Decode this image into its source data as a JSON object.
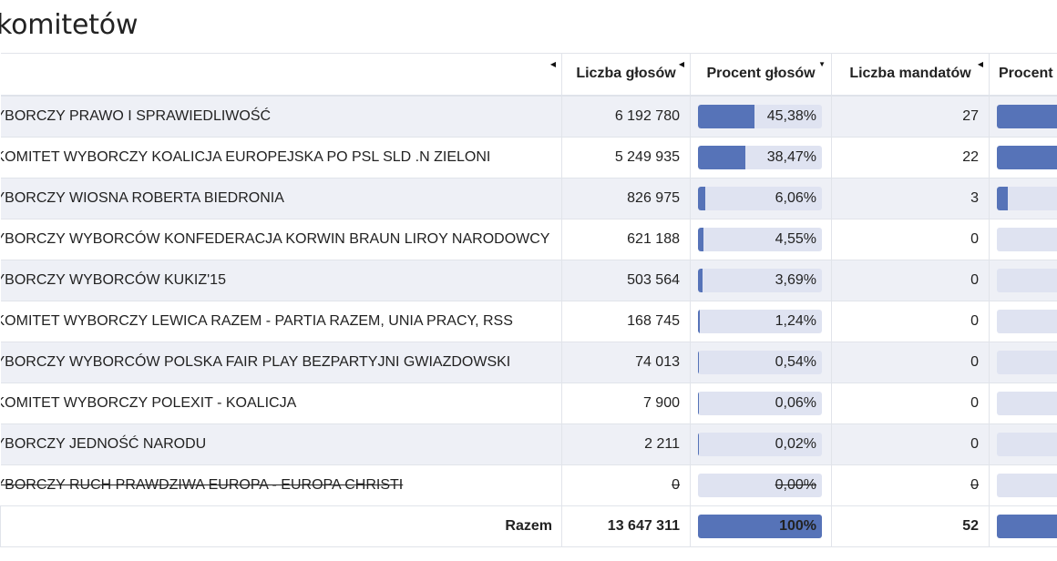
{
  "page": {
    "title": "komitetów"
  },
  "table": {
    "headers": {
      "name": "",
      "votes": "Liczba głosów",
      "votes_pct": "Procent głosów",
      "seats": "Liczba mandatów",
      "seats_pct": "Procent"
    },
    "sort_arrows": {
      "name": "◀",
      "votes": "◀",
      "votes_pct": "▼",
      "seats": "◀"
    },
    "rows": [
      {
        "name": "YBORCZY PRAWO I SPRAWIEDLIWOŚĆ",
        "votes": "6 192 780",
        "pct": "45,38%",
        "pct_value": 45.38,
        "seats": "27",
        "seats_pct_value": 52,
        "struck": false
      },
      {
        "name": "KOMITET WYBORCZY KOALICJA EUROPEJSKA PO PSL SLD .N ZIELONI",
        "votes": "5 249 935",
        "pct": "38,47%",
        "pct_value": 38.47,
        "seats": "22",
        "seats_pct_value": 42.3,
        "struck": false
      },
      {
        "name": "YBORCZY WIOSNA ROBERTA BIEDRONIA",
        "votes": "826 975",
        "pct": "6,06%",
        "pct_value": 6.06,
        "seats": "3",
        "seats_pct_value": 5.77,
        "struck": false
      },
      {
        "name": "YBORCZY WYBORCÓW KONFEDERACJA KORWIN BRAUN LIROY NARODOWCY",
        "votes": "621 188",
        "pct": "4,55%",
        "pct_value": 4.55,
        "seats": "0",
        "seats_pct_value": 0,
        "struck": false
      },
      {
        "name": "YBORCZY WYBORCÓW KUKIZ'15",
        "votes": "503 564",
        "pct": "3,69%",
        "pct_value": 3.69,
        "seats": "0",
        "seats_pct_value": 0,
        "struck": false
      },
      {
        "name": "KOMITET WYBORCZY LEWICA RAZEM - PARTIA RAZEM, UNIA PRACY, RSS",
        "votes": "168 745",
        "pct": "1,24%",
        "pct_value": 1.24,
        "seats": "0",
        "seats_pct_value": 0,
        "struck": false
      },
      {
        "name": "YBORCZY WYBORCÓW POLSKA FAIR PLAY BEZPARTYJNI GWIAZDOWSKI",
        "votes": "74 013",
        "pct": "0,54%",
        "pct_value": 0.54,
        "seats": "0",
        "seats_pct_value": 0,
        "struck": false
      },
      {
        "name": "KOMITET WYBORCZY POLEXIT - KOALICJA",
        "votes": "7 900",
        "pct": "0,06%",
        "pct_value": 0.06,
        "seats": "0",
        "seats_pct_value": 0,
        "struck": false
      },
      {
        "name": "YBORCZY JEDNOŚĆ NARODU",
        "votes": "2 211",
        "pct": "0,02%",
        "pct_value": 0.02,
        "seats": "0",
        "seats_pct_value": 0,
        "struck": false
      },
      {
        "name": "YBORCZY RUCH PRAWDZIWA EUROPA - EUROPA CHRISTI",
        "votes": "0",
        "pct": "0,00%",
        "pct_value": 0,
        "seats": "0",
        "seats_pct_value": 0,
        "struck": true
      }
    ],
    "total": {
      "label": "Razem",
      "votes": "13 647 311",
      "pct": "100%",
      "pct_value": 100,
      "seats": "52",
      "seats_pct_value": 100
    }
  },
  "colors": {
    "bar_fill": "#5673b8",
    "bar_track": "#dfe3f1",
    "row_stripe": "#eef0f6"
  }
}
